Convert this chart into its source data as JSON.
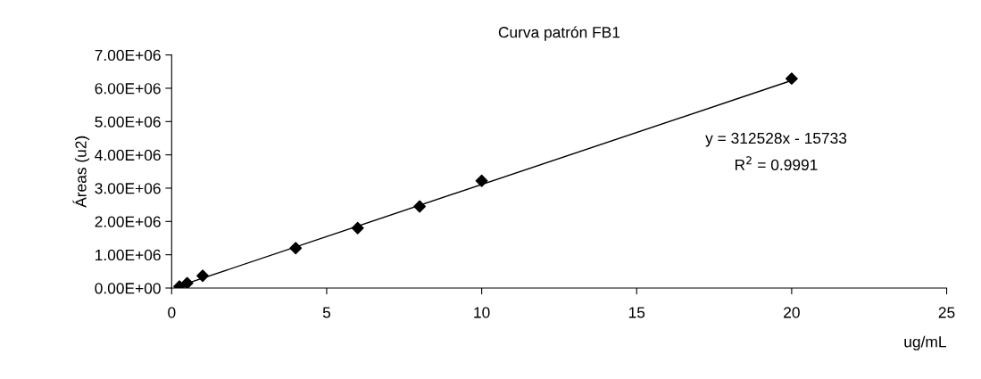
{
  "chart_data": {
    "type": "scatter",
    "title": "Curva patrón FB1",
    "xlabel": "ug/mL",
    "ylabel": "Áreas (u2)",
    "x": [
      0.25,
      0.5,
      1,
      4,
      6,
      8,
      10,
      20
    ],
    "series": [
      {
        "color": "#000000",
        "values": [
          50000,
          150000,
          370000,
          1200000,
          1800000,
          2450000,
          3220000,
          6290000
        ],
        "marker": "diamond"
      },
      {
        "type": "line",
        "color": "#000000",
        "x": [
          0.25,
          20
        ],
        "values": [
          62000,
          6235000
        ],
        "marker": "none",
        "line_style": "solid"
      }
    ],
    "xlim": [
      0,
      25
    ],
    "xticks": [
      0,
      5,
      10,
      15,
      20,
      25
    ],
    "ylim": [
      0,
      7000000
    ],
    "yticks": [
      {
        "value": 0,
        "label": "0.00E+00"
      },
      {
        "value": 1000000,
        "label": "1.00E+06"
      },
      {
        "value": 2000000,
        "label": "2.00E+06"
      },
      {
        "value": 3000000,
        "label": "3.00E+06"
      },
      {
        "value": 4000000,
        "label": "4.00E+06"
      },
      {
        "value": 5000000,
        "label": "5.00E+06"
      },
      {
        "value": 6000000,
        "label": "6.00E+06"
      },
      {
        "value": 7000000,
        "label": "7.00E+06"
      }
    ],
    "annotations": [
      "y = 312528x - 15733",
      "R$^{2}$ = 0.9991"
    ],
    "grid": false
  }
}
